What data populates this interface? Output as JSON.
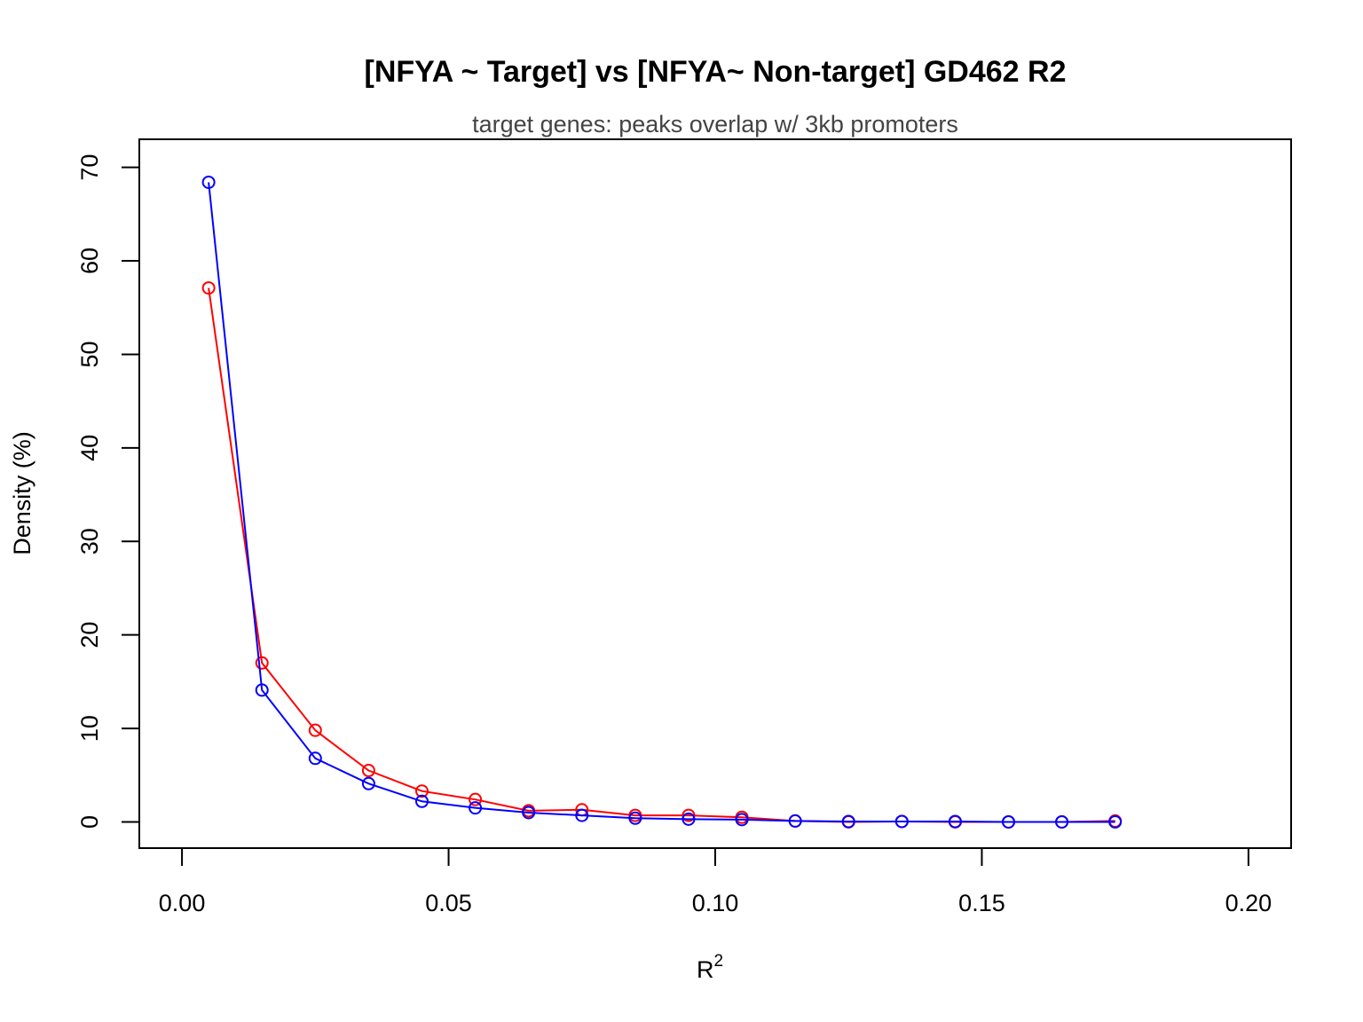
{
  "chart_data": {
    "type": "line",
    "title": "[NFYA ~ Target] vs [NFYA~ Non-target] GD462 R2",
    "subtitle": "target genes: peaks overlap w/ 3kb promoters",
    "xlabel": "R",
    "xlabel_superscript": "2",
    "ylabel": "Density (%)",
    "xlim": [
      -0.008,
      0.208
    ],
    "ylim": [
      -2.8,
      73.0
    ],
    "xticks": [
      0.0,
      0.05,
      0.1,
      0.15,
      0.2
    ],
    "xtick_labels": [
      "0.00",
      "0.05",
      "0.10",
      "0.15",
      "0.20"
    ],
    "yticks": [
      0,
      10,
      20,
      30,
      40,
      50,
      60,
      70
    ],
    "ytick_labels": [
      "0",
      "10",
      "20",
      "30",
      "40",
      "50",
      "60",
      "70"
    ],
    "grid": false,
    "marker": "open-circle",
    "x": [
      0.005,
      0.015,
      0.025,
      0.035,
      0.045,
      0.055,
      0.065,
      0.075,
      0.085,
      0.095,
      0.105,
      0.115,
      0.125,
      0.135,
      0.145,
      0.155,
      0.165,
      0.175
    ],
    "series": [
      {
        "color": "#ff0000",
        "values": [
          57.1,
          17.0,
          9.8,
          5.5,
          3.3,
          2.4,
          1.2,
          1.3,
          0.7,
          0.7,
          0.5,
          0.1,
          0.0,
          0.05,
          0.0,
          0.0,
          0.0,
          0.1
        ]
      },
      {
        "color": "#0000ff",
        "values": [
          68.4,
          14.1,
          6.8,
          4.1,
          2.2,
          1.5,
          1.0,
          0.7,
          0.4,
          0.3,
          0.25,
          0.1,
          0.05,
          0.05,
          0.05,
          0.0,
          0.0,
          0.0
        ]
      }
    ]
  }
}
